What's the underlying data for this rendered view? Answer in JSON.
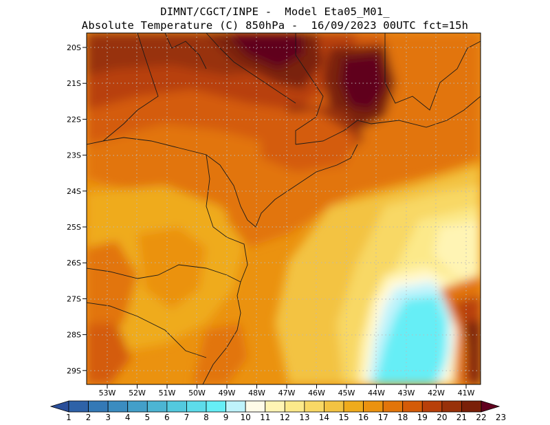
{
  "header": {
    "line1": "DIMNT/CGCT/INPE -  Model Eta05_M01_",
    "line2": "Absolute Temperature (C) 850hPa -  16/09/2023 00UTC fct=15h"
  },
  "map": {
    "lat_labels": [
      "20S",
      "21S",
      "22S",
      "23S",
      "24S",
      "25S",
      "26S",
      "27S",
      "28S",
      "29S"
    ],
    "lon_labels": [
      "53W",
      "52W",
      "51W",
      "50W",
      "49W",
      "48W",
      "47W",
      "46W",
      "45W",
      "44W",
      "43W",
      "42W",
      "41W"
    ],
    "lat_range": [
      -29.5,
      -19.9
    ],
    "lon_range": [
      -53.7,
      -40.5
    ],
    "grid": "dotted"
  },
  "colorbar": {
    "labels": [
      "1",
      "2",
      "3",
      "4",
      "5",
      "6",
      "7",
      "8",
      "9",
      "10",
      "11",
      "12",
      "13",
      "14",
      "15",
      "16",
      "17",
      "18",
      "19",
      "20",
      "21",
      "22",
      "23"
    ],
    "colors": [
      "#2a4f9a",
      "#2e62a8",
      "#3479b6",
      "#3b8cc0",
      "#439fc9",
      "#4cb5d3",
      "#53c9de",
      "#5ddcea",
      "#66eef6",
      "#bff3fb",
      "#fffbe8",
      "#fff4b4",
      "#fce98a",
      "#f8d865",
      "#f3c342",
      "#efab1c",
      "#eb920f",
      "#e2750a",
      "#d45b07",
      "#b8400a",
      "#983109",
      "#7a2008",
      "#61001f"
    ]
  }
}
